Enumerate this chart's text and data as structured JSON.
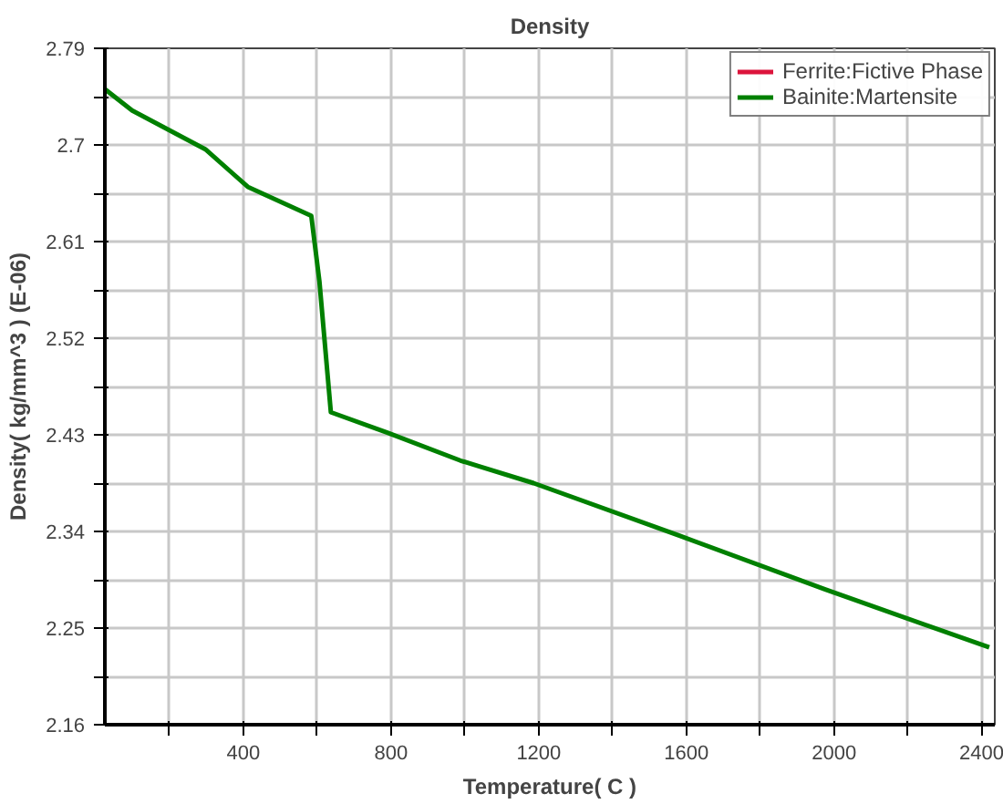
{
  "chart_data": {
    "type": "line",
    "title": "Density",
    "xlabel": "Temperature( C )",
    "ylabel": "Density( kg/mm^3 ) (E-06)",
    "xlim": [
      25,
      2435
    ],
    "ylim": [
      2.16,
      2.79
    ],
    "xticks": [
      {
        "value": 200,
        "label": null
      },
      400,
      {
        "value": 600,
        "label": null
      },
      800,
      {
        "value": 1000,
        "label": null
      },
      1200,
      {
        "value": 1400,
        "label": null
      },
      1600,
      {
        "value": 1800,
        "label": null
      },
      2000,
      {
        "value": 2200,
        "label": null
      },
      2400
    ],
    "yticks": [
      2.16,
      {
        "value": 2.205,
        "label": null
      },
      2.25,
      {
        "value": 2.295,
        "label": null
      },
      2.34,
      {
        "value": 2.385,
        "label": null
      },
      2.43,
      {
        "value": 2.475,
        "label": null
      },
      2.52,
      {
        "value": 2.565,
        "label": null
      },
      2.61,
      {
        "value": 2.655,
        "label": null
      },
      2.7,
      {
        "value": 2.745,
        "label": null
      },
      2.79
    ],
    "grid": true,
    "legend": "top right",
    "line_style": "solid",
    "marker": "none",
    "x": [
      25,
      99,
      198,
      297,
      412,
      584,
      606,
      637,
      790,
      988,
      1186,
      1581,
      1976,
      2420
    ],
    "series": [
      {
        "name": "Ferrite:Fictive Phase",
        "color": "#dc143c",
        "values": [
          null,
          null,
          null,
          null,
          null,
          null,
          null,
          null,
          null,
          null,
          null,
          null,
          null,
          null
        ]
      },
      {
        "name": "Bainite:Martensite",
        "color": "#008000",
        "values": [
          2.752,
          2.732,
          2.714,
          2.696,
          2.661,
          2.634,
          2.573,
          2.451,
          2.432,
          2.406,
          2.385,
          2.336,
          2.286,
          2.232
        ]
      }
    ]
  }
}
